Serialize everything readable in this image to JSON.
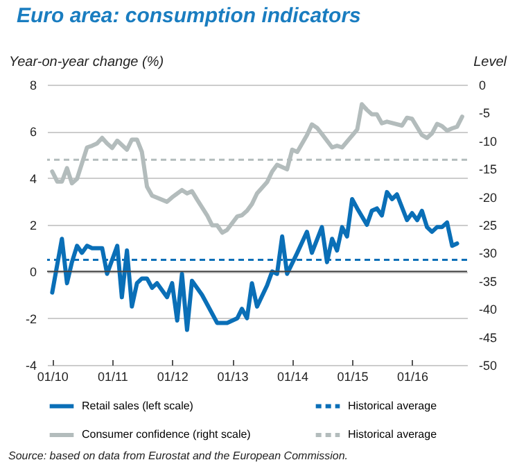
{
  "chart_data": {
    "type": "line",
    "title": "Euro area: consumption indicators",
    "ylabel": "Year-on-year change (%)",
    "y2label": "Level",
    "xlim": [
      "2009-12",
      "2016-12"
    ],
    "xticks": [
      {
        "value": "2010-01",
        "label": "01/10"
      },
      {
        "value": "2011-01",
        "label": "01/11"
      },
      {
        "value": "2012-01",
        "label": "01/12"
      },
      {
        "value": "2013-01",
        "label": "01/13"
      },
      {
        "value": "2014-01",
        "label": "01/14"
      },
      {
        "value": "2015-01",
        "label": "01/15"
      },
      {
        "value": "2016-01",
        "label": "01/16"
      }
    ],
    "ylim": [
      -4,
      8
    ],
    "yticks": [
      -4,
      -2,
      0,
      2,
      4,
      6,
      8
    ],
    "y2lim": [
      -50,
      0
    ],
    "y2ticks": [
      -50,
      -45,
      -40,
      -35,
      -30,
      -25,
      -20,
      -15,
      -10,
      -5,
      0
    ],
    "grid": "y",
    "legend": "bottom",
    "line_style": "solid",
    "series": [
      {
        "name": "Retail sales (left scale)",
        "color": "#0a6fb7",
        "x": [
          "2010-01",
          "2010-03",
          "2010-04",
          "2010-05",
          "2010-06",
          "2010-07",
          "2010-08",
          "2010-09",
          "2010-11",
          "2010-12",
          "2011-02",
          "2011-03",
          "2011-04",
          "2011-05",
          "2011-06",
          "2011-07",
          "2011-08",
          "2011-09",
          "2011-10",
          "2011-12",
          "2012-01",
          "2012-02",
          "2012-03",
          "2012-04",
          "2012-05",
          "2012-07",
          "2012-08",
          "2012-10",
          "2012-12",
          "2013-02",
          "2013-03",
          "2013-04",
          "2013-05",
          "2013-06",
          "2013-08",
          "2013-09",
          "2013-10",
          "2013-11",
          "2013-12",
          "2014-02",
          "2014-04",
          "2014-05",
          "2014-07",
          "2014-08",
          "2014-09",
          "2014-10",
          "2014-11",
          "2014-12",
          "2015-01",
          "2015-02",
          "2015-04",
          "2015-05",
          "2015-06",
          "2015-07",
          "2015-08",
          "2015-09",
          "2015-10",
          "2015-12",
          "2016-01",
          "2016-02",
          "2016-03",
          "2016-04",
          "2016-05",
          "2016-06",
          "2016-07",
          "2016-08",
          "2016-09",
          "2016-10"
        ],
        "values": [
          -0.9,
          1.4,
          -0.5,
          0.4,
          1.1,
          0.8,
          1.1,
          1.0,
          1.0,
          -0.1,
          1.1,
          -1.1,
          0.9,
          -1.5,
          -0.5,
          -0.3,
          -0.3,
          -0.7,
          -0.5,
          -1.1,
          -0.5,
          -2.1,
          -0.1,
          -2.5,
          -0.4,
          -1.0,
          -1.4,
          -2.2,
          -2.2,
          -2.0,
          -1.6,
          -2.0,
          -0.5,
          -1.5,
          -0.6,
          0.0,
          -0.1,
          1.5,
          -0.1,
          0.8,
          1.7,
          0.8,
          1.9,
          0.4,
          1.4,
          0.9,
          1.9,
          1.5,
          3.1,
          2.7,
          2.0,
          2.6,
          2.7,
          2.4,
          3.4,
          3.1,
          3.3,
          2.2,
          2.5,
          2.2,
          2.6,
          1.9,
          1.7,
          1.9,
          1.9,
          2.1,
          1.1,
          1.2
        ]
      },
      {
        "name": "Consumer confidence (right scale)",
        "color": "#b3bcbc",
        "axis": "y2",
        "x": [
          "2010-01",
          "2010-02",
          "2010-03",
          "2010-04",
          "2010-05",
          "2010-06",
          "2010-08",
          "2010-09",
          "2010-10",
          "2010-11",
          "2010-12",
          "2011-01",
          "2011-02",
          "2011-04",
          "2011-05",
          "2011-06",
          "2011-07",
          "2011-08",
          "2011-09",
          "2011-12",
          "2012-01",
          "2012-03",
          "2012-04",
          "2012-05",
          "2012-06",
          "2012-08",
          "2012-09",
          "2012-10",
          "2012-11",
          "2012-12",
          "2013-02",
          "2013-03",
          "2013-04",
          "2013-05",
          "2013-06",
          "2013-08",
          "2013-09",
          "2013-10",
          "2013-12",
          "2014-01",
          "2014-02",
          "2014-04",
          "2014-05",
          "2014-06",
          "2014-07",
          "2014-09",
          "2014-10",
          "2014-11",
          "2015-02",
          "2015-03",
          "2015-04",
          "2015-05",
          "2015-06",
          "2015-07",
          "2015-08",
          "2015-11",
          "2015-12",
          "2016-01",
          "2016-03",
          "2016-04",
          "2016-05",
          "2016-06",
          "2016-07",
          "2016-08",
          "2016-09",
          "2016-10",
          "2016-11"
        ],
        "values": [
          -15.5,
          -17.3,
          -17.3,
          -14.9,
          -17.6,
          -16.8,
          -11.2,
          -10.9,
          -10.5,
          -9.5,
          -10.5,
          -11.3,
          -10.0,
          -11.6,
          -9.8,
          -9.8,
          -12.0,
          -18.2,
          -19.8,
          -20.9,
          -20.1,
          -18.8,
          -19.4,
          -19.0,
          -20.5,
          -23.3,
          -25.1,
          -25.1,
          -26.4,
          -25.9,
          -23.5,
          -23.3,
          -22.5,
          -21.3,
          -19.4,
          -17.4,
          -15.5,
          -14.3,
          -15.1,
          -11.6,
          -12.0,
          -9.0,
          -7.1,
          -7.7,
          -8.8,
          -11.2,
          -10.9,
          -11.2,
          -8.0,
          -3.5,
          -4.5,
          -5.3,
          -5.3,
          -6.9,
          -6.6,
          -7.3,
          -5.9,
          -6.1,
          -9.0,
          -9.5,
          -8.7,
          -7.0,
          -7.4,
          -8.2,
          -7.8,
          -7.5,
          -5.7
        ]
      }
    ],
    "ref_lines": [
      {
        "axis": "y",
        "value": 0.5,
        "label": "Historical average",
        "color": "#0a6fb7",
        "line_style": "dashed"
      },
      {
        "axis": "y2",
        "value": -13.4,
        "label": "Historical average",
        "color": "#b3bcbc",
        "line_style": "dashed"
      }
    ],
    "annotations": [
      "Source: based on data from Eurostat and the European Commission."
    ]
  }
}
